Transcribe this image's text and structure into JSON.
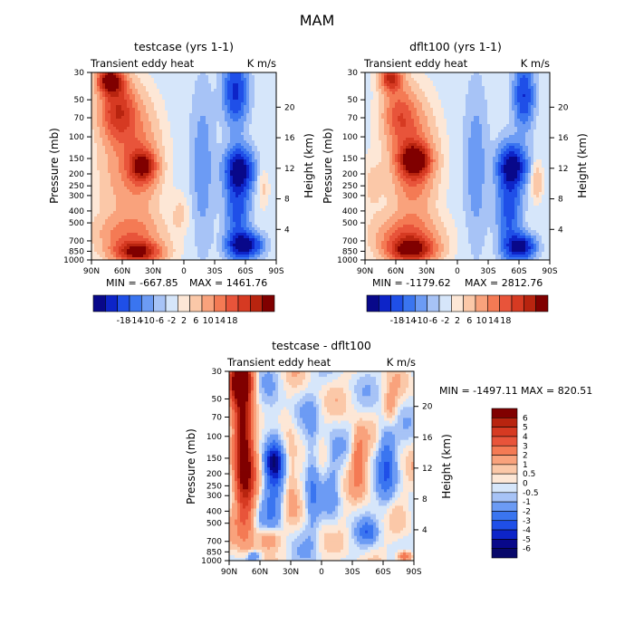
{
  "figure": {
    "title": "MAM"
  },
  "chart_data": [
    {
      "type": "heatmap",
      "panel": "testcase",
      "title": "testcase (yrs 1-1)",
      "left_label": "Transient eddy heat",
      "right_label": "K m/s",
      "ylabel": "Pressure (mb)",
      "ylabel_right": "Height (km)",
      "x_ticks": [
        "90N",
        "60N",
        "30N",
        "0",
        "30S",
        "60S",
        "90S"
      ],
      "xlim": [
        90,
        -90
      ],
      "y_ticks": [
        "30",
        "50",
        "70",
        "100",
        "150",
        "200",
        "250",
        "300",
        "400",
        "500",
        "700",
        "850",
        "1000"
      ],
      "ylim": [
        30,
        1000
      ],
      "height_ticks": [
        "4",
        "8",
        "12",
        "16",
        "20"
      ],
      "min_label": "MIN = -667.85",
      "max_label": "MAX = 1461.76",
      "colorbar": {
        "orientation": "horizontal",
        "labels": [
          "-18",
          "-14",
          "-10",
          "-6",
          "-2",
          "2",
          "6",
          "10",
          "14",
          "18"
        ]
      }
    },
    {
      "type": "heatmap",
      "panel": "dflt100",
      "title": "dflt100 (yrs 1-1)",
      "left_label": "Transient eddy heat",
      "right_label": "K m/s",
      "ylabel": "Pressure (mb)",
      "ylabel_right": "Height (km)",
      "x_ticks": [
        "90N",
        "60N",
        "30N",
        "0",
        "30S",
        "60S",
        "90S"
      ],
      "xlim": [
        90,
        -90
      ],
      "y_ticks": [
        "30",
        "50",
        "70",
        "100",
        "150",
        "200",
        "250",
        "300",
        "400",
        "500",
        "700",
        "850",
        "1000"
      ],
      "ylim": [
        30,
        1000
      ],
      "height_ticks": [
        "4",
        "8",
        "12",
        "16",
        "20"
      ],
      "min_label": "MIN = -1179.62",
      "max_label": "MAX = 2812.76",
      "colorbar": {
        "orientation": "horizontal",
        "labels": [
          "-18",
          "-14",
          "-10",
          "-6",
          "-2",
          "2",
          "6",
          "10",
          "14",
          "18"
        ]
      }
    },
    {
      "type": "heatmap",
      "panel": "difference",
      "title": "testcase - dflt100",
      "left_label": "Transient eddy heat",
      "right_label": "K m/s",
      "ylabel": "Pressure (mb)",
      "ylabel_right": "Height (km)",
      "x_ticks": [
        "90N",
        "60N",
        "30N",
        "0",
        "30S",
        "60S",
        "90S"
      ],
      "xlim": [
        90,
        -90
      ],
      "y_ticks": [
        "30",
        "50",
        "70",
        "100",
        "150",
        "200",
        "250",
        "300",
        "400",
        "500",
        "700",
        "850",
        "1000"
      ],
      "ylim": [
        30,
        1000
      ],
      "height_ticks": [
        "4",
        "8",
        "12",
        "16",
        "20"
      ],
      "min_label": "MIN = -1497.11",
      "max_label": "MAX = 820.51",
      "colorbar": {
        "orientation": "vertical",
        "labels": [
          "6",
          "5",
          "4",
          "3",
          "2",
          "1",
          "0.5",
          "0",
          "-0.5",
          "-1",
          "-2",
          "-3",
          "-4",
          "-5",
          "-6"
        ]
      }
    }
  ],
  "palettes": {
    "main": [
      "#08088a",
      "#0d24c8",
      "#1f4fe8",
      "#3a75f0",
      "#6c9bf4",
      "#a7c3f6",
      "#d6e6fa",
      "#fde7d6",
      "#fbc8a8",
      "#f9a27c",
      "#f47a54",
      "#e8543a",
      "#d63a22",
      "#b8240f",
      "#800000"
    ],
    "diff": [
      "#800000",
      "#b8240f",
      "#d63a22",
      "#e8543a",
      "#f47a54",
      "#f9a27c",
      "#fbc8a8",
      "#fde7d6",
      "#d6e6fa",
      "#a7c3f6",
      "#6c9bf4",
      "#3a75f0",
      "#1f4fe8",
      "#0d24c8",
      "#08088a",
      "#08086a"
    ]
  }
}
